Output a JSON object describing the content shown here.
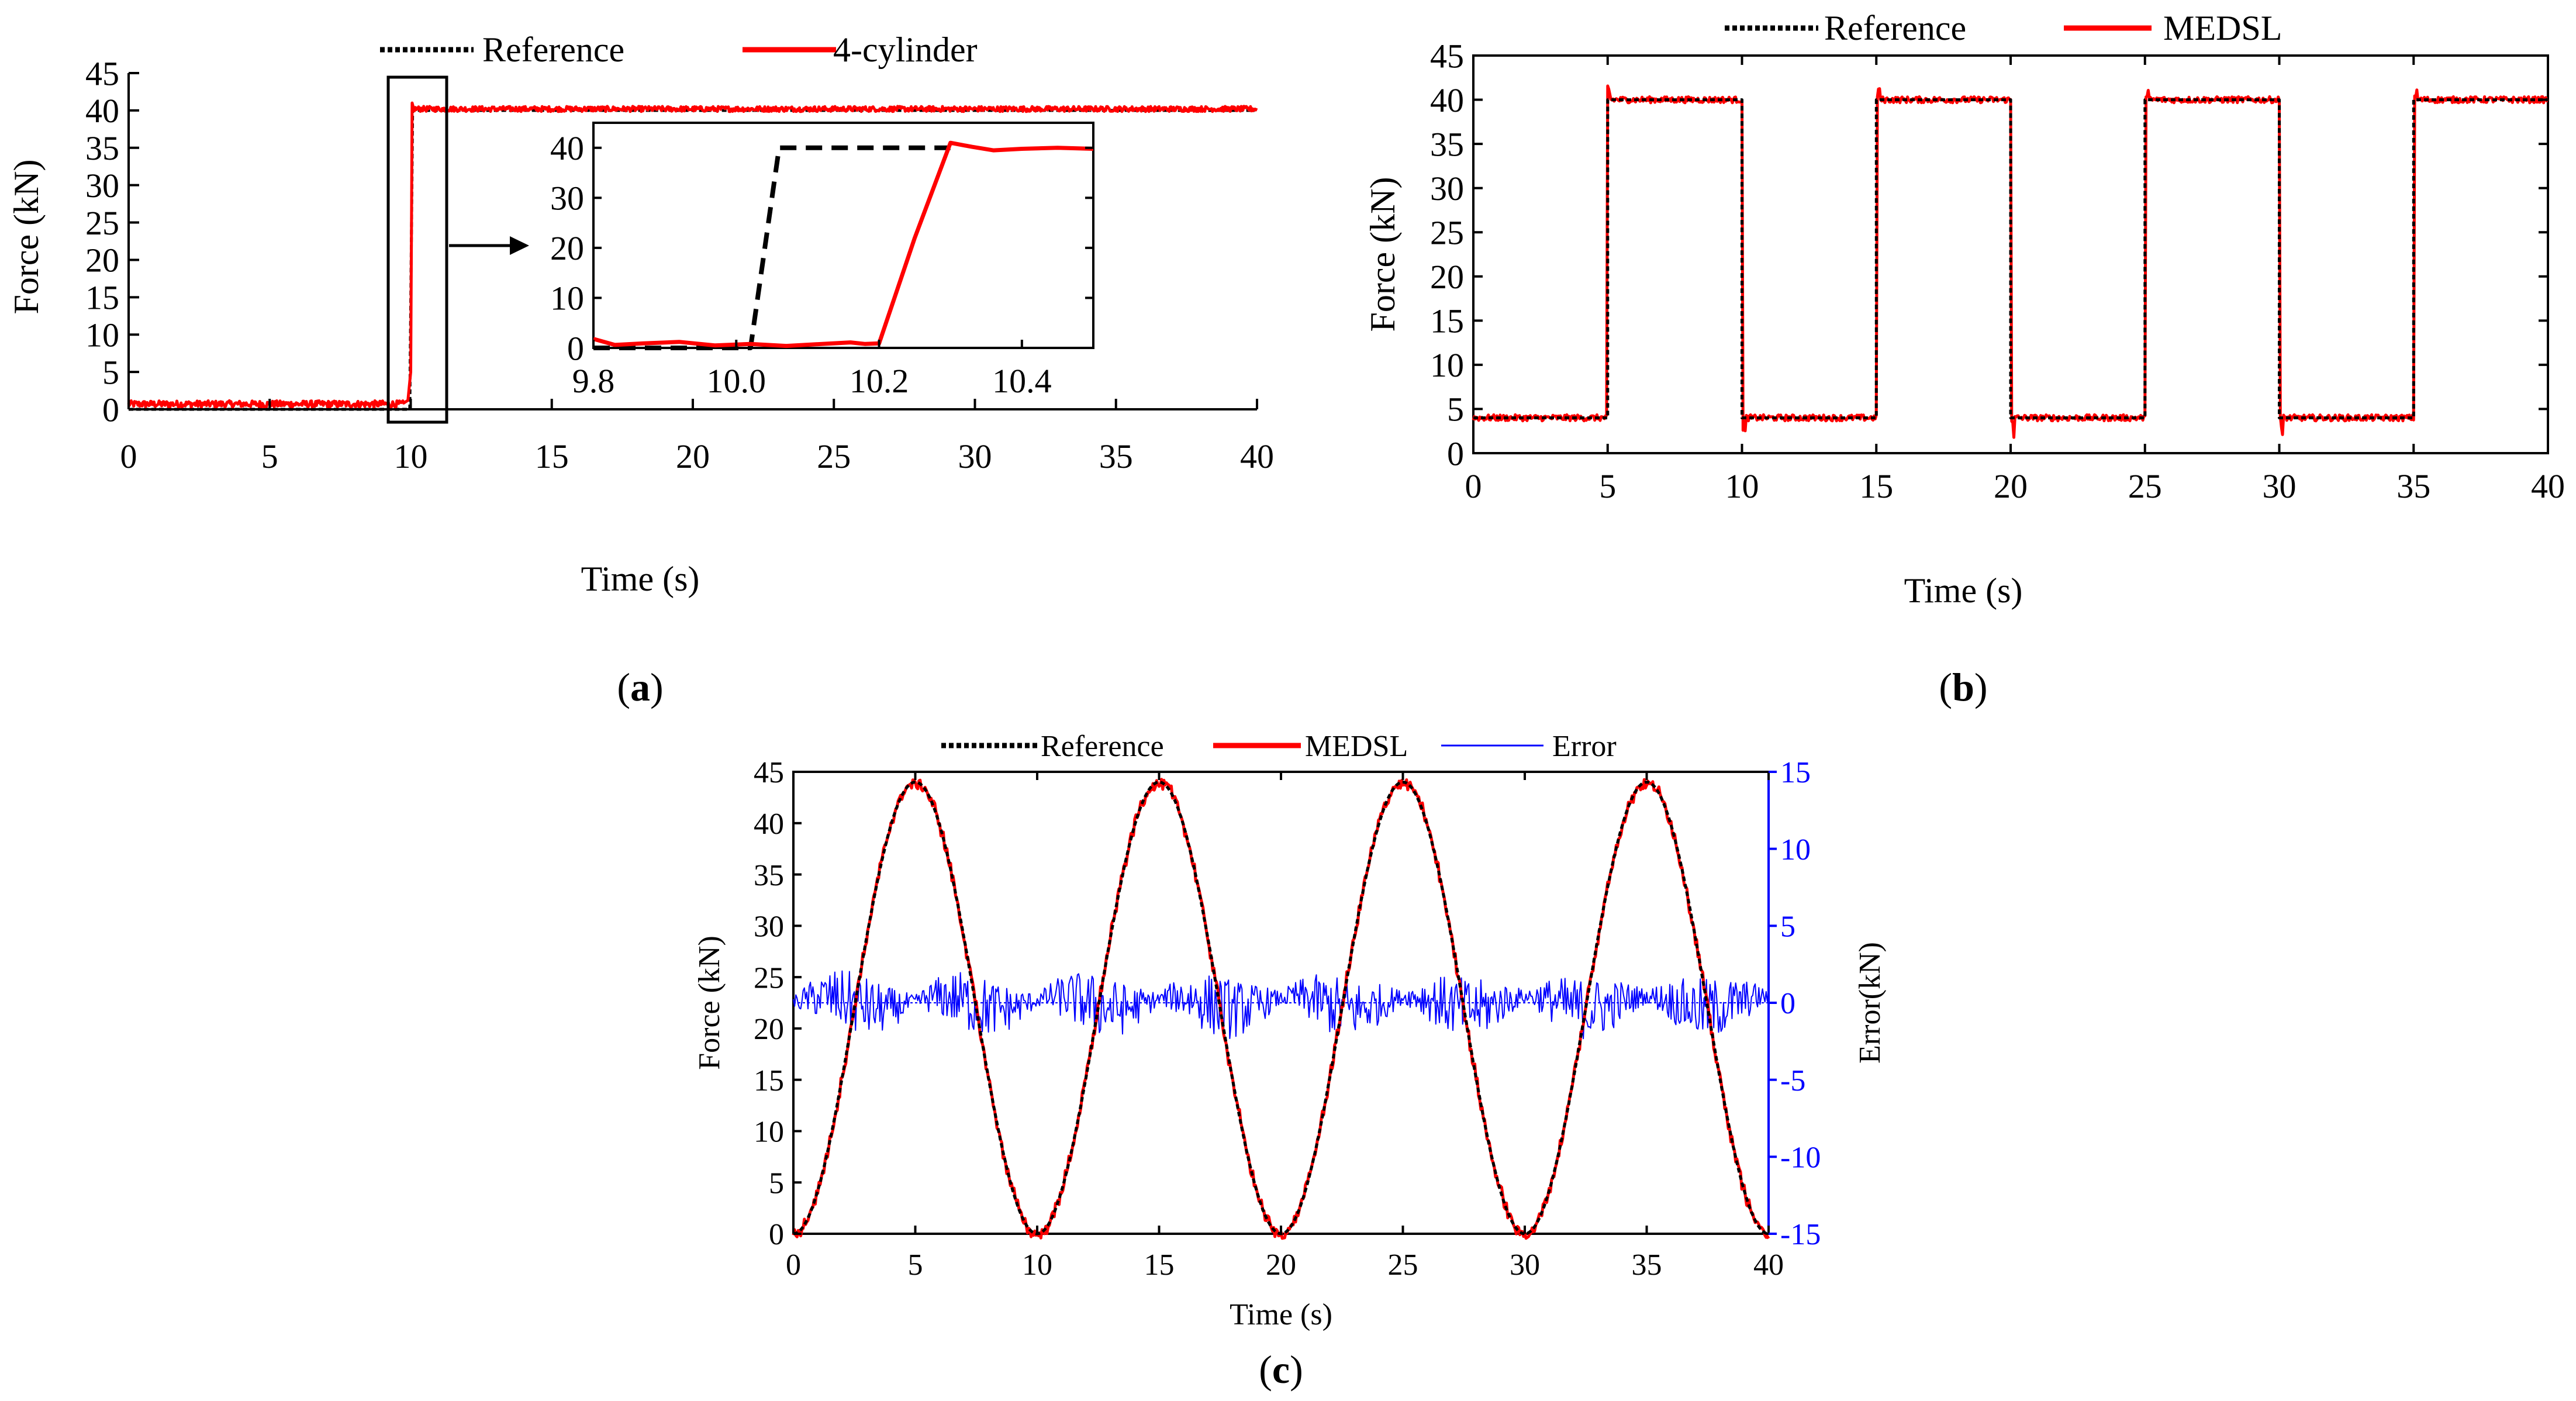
{
  "colors": {
    "reference": "#000000",
    "measured": "#ff0000",
    "error": "#0000ff",
    "axis": "#000000",
    "error_axis": "#0000ff"
  },
  "chart_data": [
    {
      "id": "a",
      "type": "line",
      "panel_label": "a",
      "xlabel": "Time (s)",
      "ylabel": "Force (kN)",
      "xlim": [
        0,
        40
      ],
      "ylim": [
        0,
        45
      ],
      "xticks": [
        0,
        5,
        10,
        15,
        20,
        25,
        30,
        35,
        40
      ],
      "yticks": [
        0,
        5,
        10,
        15,
        20,
        25,
        30,
        35,
        40,
        45
      ],
      "legend": [
        "Reference",
        "4-cylinder"
      ],
      "legend_position": "top",
      "series": [
        {
          "name": "Reference",
          "style": "dotted",
          "color": "#000000",
          "x": [
            0,
            10.05,
            10.15,
            40
          ],
          "y": [
            0,
            0,
            40,
            40
          ]
        },
        {
          "name": "4-cylinder",
          "style": "solid",
          "color": "#ff0000",
          "x": [
            0,
            9.8,
            10.2,
            10.3,
            40
          ],
          "y": [
            0.7,
            0.7,
            1,
            40.5,
            40.2
          ]
        }
      ],
      "highlight_box_x": [
        9.2,
        11.2
      ],
      "inset": {
        "xlim": [
          9.8,
          10.5
        ],
        "ylim": [
          0,
          45
        ],
        "xticks": [
          9.8,
          10.0,
          10.2,
          10.4
        ],
        "xtick_labels": [
          "9.8",
          "10.0",
          "10.2",
          "10.4"
        ],
        "yticks": [
          0,
          10,
          20,
          30,
          40
        ],
        "series": [
          {
            "name": "Reference",
            "style": "dashed",
            "color": "#000000",
            "x": [
              9.8,
              10.02,
              10.06,
              10.3
            ],
            "y": [
              0,
              0,
              40,
              40
            ]
          },
          {
            "name": "4-cylinder",
            "style": "solid",
            "color": "#ff0000",
            "x": [
              9.8,
              9.83,
              9.87,
              9.92,
              9.97,
              10.02,
              10.07,
              10.12,
              10.16,
              10.18,
              10.2,
              10.25,
              10.3,
              10.33,
              10.36,
              10.4,
              10.45,
              10.5
            ],
            "y": [
              1.8,
              0.6,
              0.9,
              1.2,
              0.5,
              0.8,
              0.4,
              0.8,
              1.1,
              0.8,
              0.9,
              22,
              41,
              40.2,
              39.5,
              39.8,
              40,
              39.8
            ]
          }
        ]
      }
    },
    {
      "id": "b",
      "type": "line",
      "panel_label": "b",
      "xlabel": "Time (s)",
      "ylabel": "Force (kN)",
      "xlim": [
        0,
        40
      ],
      "ylim": [
        0,
        45
      ],
      "xticks": [
        0,
        5,
        10,
        15,
        20,
        25,
        30,
        35,
        40
      ],
      "yticks": [
        0,
        5,
        10,
        15,
        20,
        25,
        30,
        35,
        40,
        45
      ],
      "legend": [
        "Reference",
        "MEDSL"
      ],
      "legend_position": "top",
      "series": [
        {
          "name": "Reference",
          "style": "dotted",
          "color": "#000000",
          "x": [
            0,
            5,
            5,
            10,
            10,
            15,
            15,
            20,
            20,
            25,
            25,
            30,
            30,
            35,
            35,
            40
          ],
          "y": [
            4,
            4,
            40,
            40,
            4,
            4,
            40,
            40,
            4,
            4,
            40,
            40,
            4,
            4,
            40,
            40
          ]
        },
        {
          "name": "MEDSL",
          "style": "solid",
          "color": "#ff0000",
          "x": [
            0,
            5,
            5.1,
            10,
            10.1,
            15,
            15.1,
            20,
            20.1,
            25,
            25.1,
            30,
            30.1,
            35,
            35.1,
            40
          ],
          "y": [
            4,
            4,
            40,
            40,
            4,
            4,
            40,
            40,
            4,
            4,
            40,
            40,
            4,
            4,
            40,
            40
          ]
        }
      ]
    },
    {
      "id": "c",
      "type": "line",
      "panel_label": "c",
      "xlabel": "Time (s)",
      "ylabel": "Force (kN)",
      "y2label": "Error(kN)",
      "xlim": [
        0,
        40
      ],
      "ylim": [
        0,
        45
      ],
      "y2lim": [
        -15,
        15
      ],
      "xticks": [
        0,
        5,
        10,
        15,
        20,
        25,
        30,
        35,
        40
      ],
      "yticks": [
        0,
        5,
        10,
        15,
        20,
        25,
        30,
        35,
        40,
        45
      ],
      "y2ticks": [
        -15,
        -10,
        -5,
        0,
        5,
        10,
        15
      ],
      "legend": [
        "Reference",
        "MEDSL",
        "Error"
      ],
      "legend_position": "top",
      "series": [
        {
          "name": "Reference",
          "style": "dotted",
          "color": "#000000",
          "function": "sine",
          "amplitude": 22,
          "offset": 22,
          "period_s": 10,
          "peak_at_s": 5
        },
        {
          "name": "MEDSL",
          "style": "solid",
          "color": "#ff0000",
          "function": "sine",
          "amplitude": 22,
          "offset": 22,
          "period_s": 10,
          "peak_at_s": 5
        },
        {
          "name": "Error",
          "style": "solid",
          "color": "#0000ff",
          "axis": "right",
          "approx_range": [
            -3,
            3
          ]
        }
      ]
    }
  ]
}
